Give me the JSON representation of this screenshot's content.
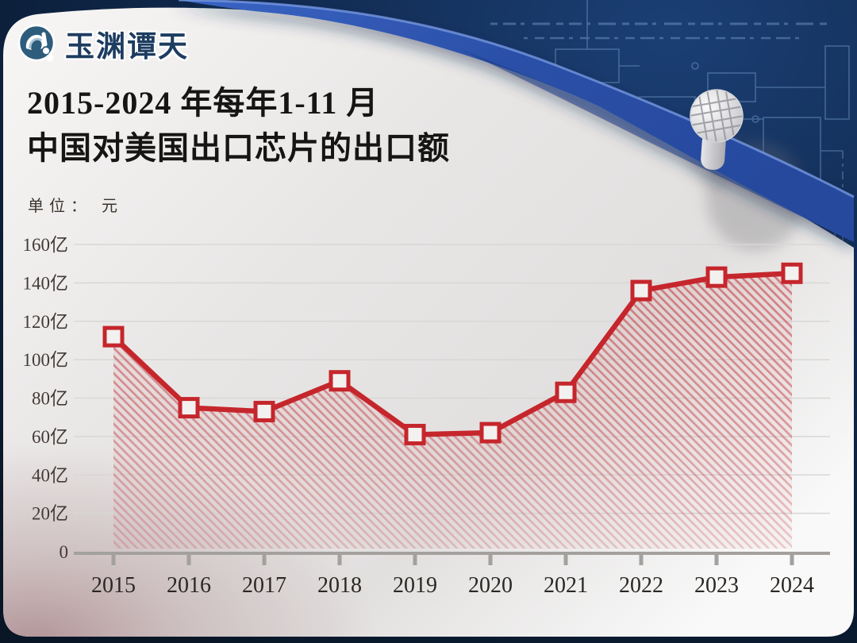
{
  "theme": {
    "background_navy": "#0c2244",
    "card_light": "#e9e7e6",
    "card_corner_mauve": "#a98f92",
    "ribbon_blue": "#2e54ab",
    "accent_red": "#c5262c",
    "axis_gray": "#a3a09e",
    "grid_gray": "#d9d7d6",
    "text_dark": "#171513"
  },
  "header": {
    "logo_text": "玉渊谭天",
    "title_line1": "2015-2024 年每年1-11 月",
    "title_line2": "中国对美国出口芯片的出口额",
    "unit_label": "单位： 元"
  },
  "icons": {
    "logo": "yuyuan-tantian-wave-logo",
    "decor_right": "silicon-wafer-chip",
    "background": "circuit-blueprint"
  },
  "chart_data": {
    "type": "line",
    "title": "2015-2024年每年1-11月中国对美国出口芯片的出口额",
    "unit": "亿元",
    "categories": [
      "2015",
      "2016",
      "2017",
      "2018",
      "2019",
      "2020",
      "2021",
      "2022",
      "2023",
      "2024"
    ],
    "values": [
      112,
      75,
      73,
      89,
      61,
      62,
      83,
      136,
      143,
      145
    ],
    "series_name": "中国对美国出口芯片的出口额",
    "ylabel": "亿元",
    "ylim": [
      0,
      160
    ],
    "ytick_step": 20,
    "ytick_suffix": "亿",
    "zero_label": "0",
    "grid": true,
    "legend": "none",
    "line_color": "#c5262c",
    "marker": "open-square",
    "area_style": "diagonal-red-hatch-fading"
  }
}
